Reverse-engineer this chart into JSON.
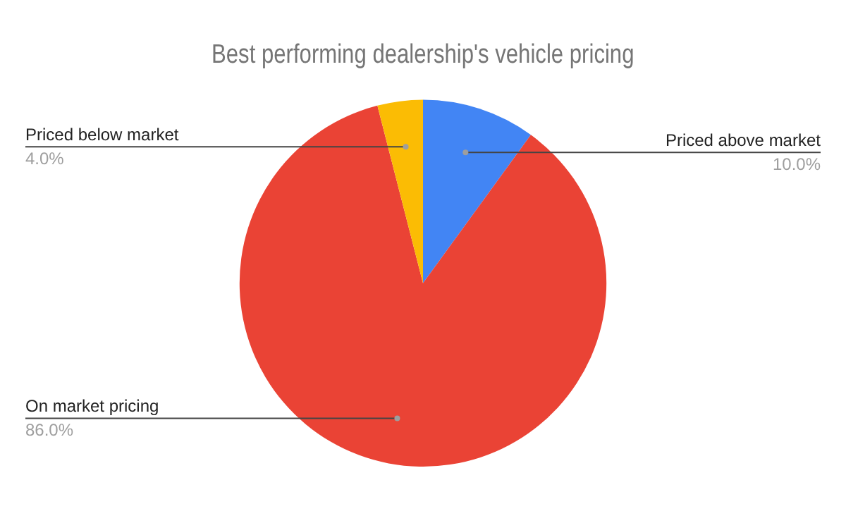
{
  "chart_data": {
    "type": "pie",
    "title": "Best performing dealership's vehicle pricing",
    "categories": [
      "Priced above market",
      "On market pricing",
      "Priced below market"
    ],
    "values": [
      10,
      86,
      4
    ],
    "colors": [
      "#4285f4",
      "#ea4335",
      "#fbbc04"
    ],
    "value_labels": [
      "10.0%",
      "86.0%",
      "4.0%"
    ],
    "legend": false
  }
}
